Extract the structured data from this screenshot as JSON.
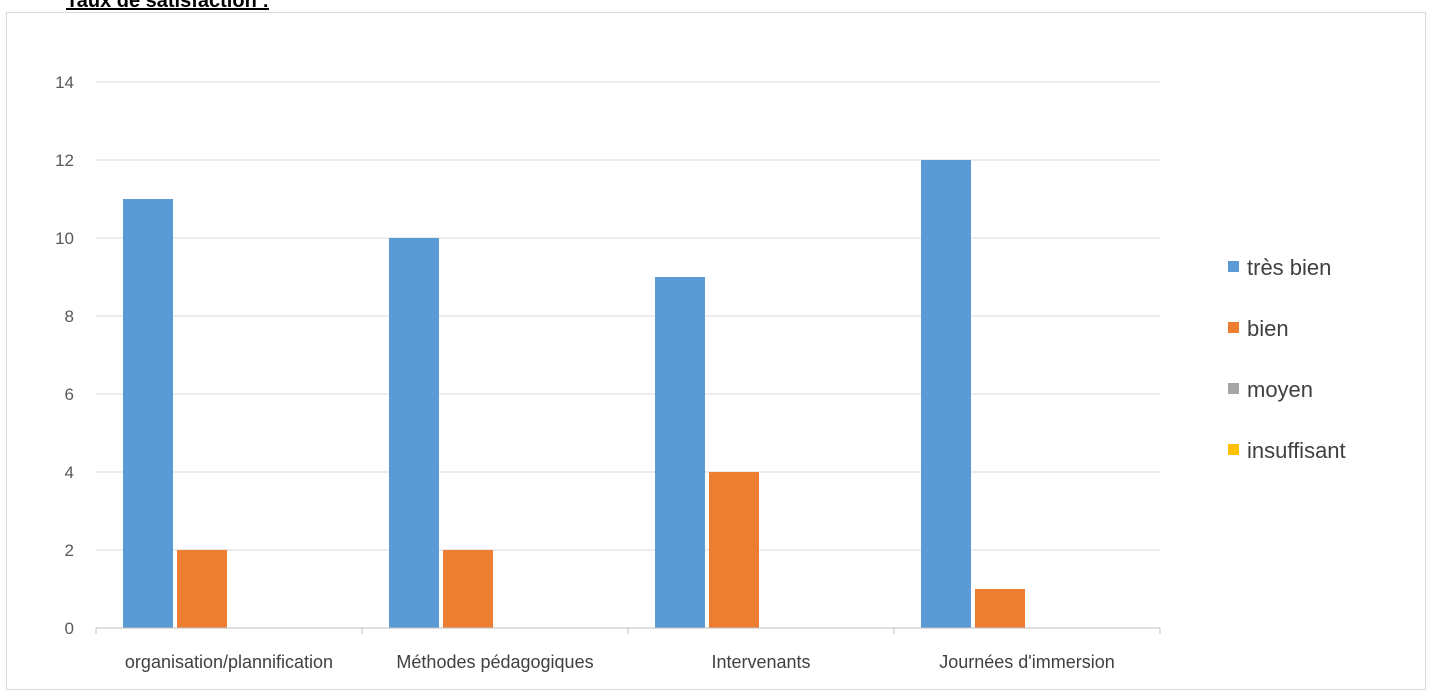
{
  "page": {
    "heading": "Taux de satisfaction :"
  },
  "chart_data": {
    "type": "bar",
    "title": "",
    "xlabel": "",
    "ylabel": "",
    "categories": [
      "organisation/plannification",
      "Méthodes pédagogiques",
      "Intervenants",
      "Journées d'immersion"
    ],
    "series": [
      {
        "name": "très bien",
        "color": "#5B9BD5",
        "values": [
          11,
          10,
          9,
          12
        ]
      },
      {
        "name": "bien",
        "color": "#ED7D31",
        "values": [
          2,
          2,
          4,
          1
        ]
      },
      {
        "name": "moyen",
        "color": "#A5A5A5",
        "values": [
          0,
          0,
          0,
          0
        ]
      },
      {
        "name": "insuffisant",
        "color": "#FFC000",
        "values": [
          0,
          0,
          0,
          0
        ]
      }
    ],
    "ylim": [
      0,
      14
    ],
    "yticks": [
      0,
      2,
      4,
      6,
      8,
      10,
      12,
      14
    ],
    "grid": true,
    "legend_position": "right"
  }
}
